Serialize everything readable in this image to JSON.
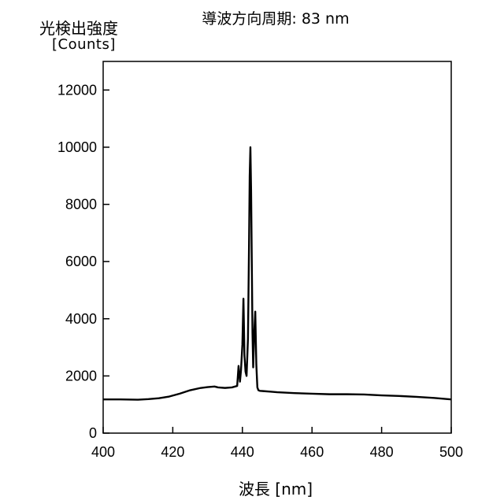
{
  "chart_data": {
    "type": "line",
    "title": "導波方向周期: 83 nm",
    "ylabel": "光検出強度",
    "ylabel_unit": "[Counts]",
    "xlabel": "波長 [nm]",
    "xlim": [
      400,
      500
    ],
    "ylim": [
      0,
      13000
    ],
    "xticks": [
      400,
      420,
      440,
      460,
      480,
      500
    ],
    "yticks": [
      0,
      2000,
      4000,
      6000,
      8000,
      10000,
      12000
    ],
    "grid": false,
    "series": [
      {
        "color": "#000000",
        "x": [
          400,
          405,
          410,
          413,
          416,
          419,
          422,
          425,
          428,
          430,
          432,
          433,
          435,
          437,
          438.5,
          438.9,
          439.3,
          439.6,
          440.0,
          440.3,
          440.6,
          440.9,
          441.2,
          441.6,
          441.9,
          442.1,
          442.3,
          442.5,
          442.7,
          442.9,
          443.1,
          443.4,
          443.7,
          444.0,
          444.3,
          444.6,
          445,
          446,
          448,
          450,
          455,
          460,
          465,
          470,
          475,
          480,
          485,
          490,
          495,
          500
        ],
        "y": [
          1180,
          1180,
          1170,
          1190,
          1220,
          1280,
          1380,
          1500,
          1580,
          1610,
          1630,
          1600,
          1580,
          1600,
          1650,
          2350,
          1800,
          2200,
          3100,
          4700,
          2700,
          2150,
          2000,
          3300,
          6500,
          9000,
          10000,
          8500,
          6000,
          3500,
          2300,
          3500,
          4250,
          2400,
          1600,
          1500,
          1480,
          1470,
          1450,
          1430,
          1400,
          1380,
          1360,
          1360,
          1350,
          1320,
          1300,
          1270,
          1230,
          1180
        ]
      }
    ]
  }
}
